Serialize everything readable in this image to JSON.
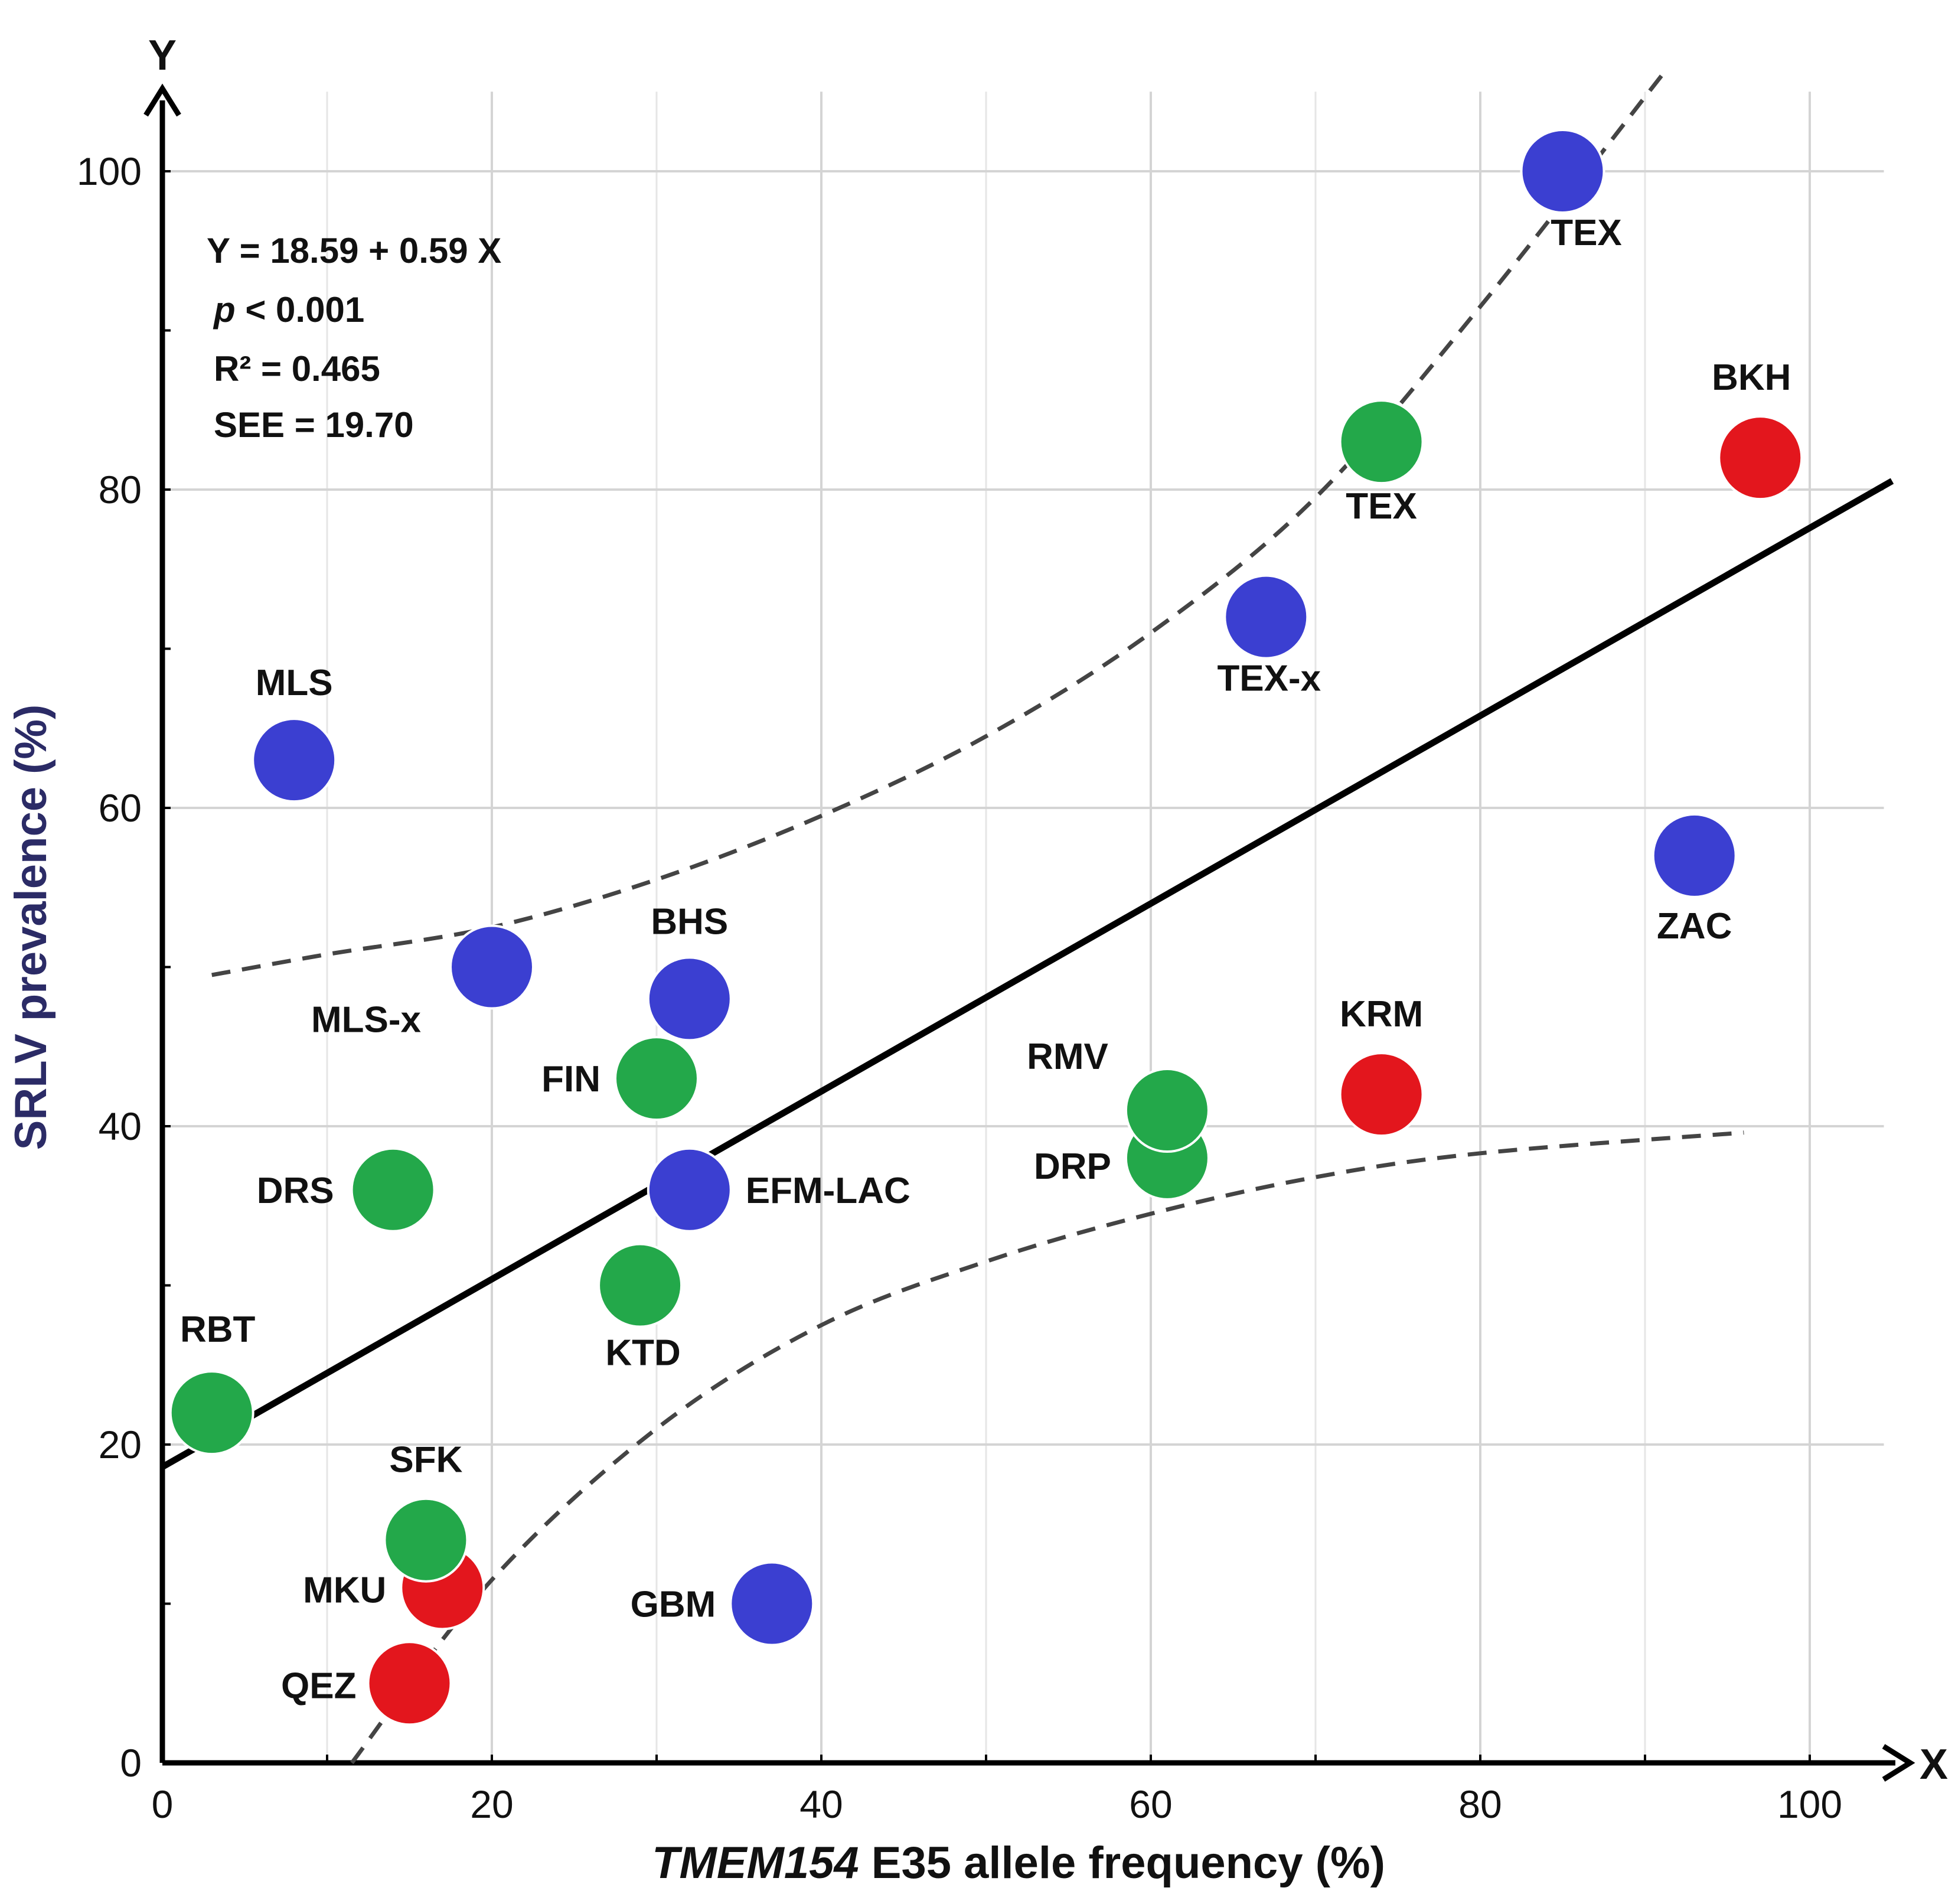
{
  "chart_data": {
    "type": "scatter",
    "xlabel_italic": "TMEM154",
    "xlabel_rest": " E35 allele frequency (%)",
    "ylabel": "SRLV prevalence (%)",
    "x_axis_letter": "X",
    "y_axis_letter": "Y",
    "xlim": [
      0,
      105
    ],
    "ylim": [
      0,
      105
    ],
    "x_ticks": [
      0,
      20,
      40,
      60,
      80,
      100
    ],
    "y_ticks": [
      0,
      20,
      40,
      60,
      80,
      100
    ],
    "grid": true,
    "equation": {
      "line1": "Y = 18.59 + 0.59 X",
      "line2_italic": "p",
      "line2_rest": " < 0.001",
      "line3": "R² = 0.465",
      "line4": "SEE = 19.70"
    },
    "regression": {
      "intercept": 18.59,
      "slope": 0.59
    },
    "confidence_band": {
      "upper": [
        [
          3,
          49.5
        ],
        [
          10,
          50.8
        ],
        [
          20,
          52.5
        ],
        [
          30,
          55.5
        ],
        [
          40,
          59.5
        ],
        [
          50,
          64.5
        ],
        [
          60,
          71
        ],
        [
          70,
          79.5
        ],
        [
          80,
          91.5
        ],
        [
          91,
          106
        ]
      ],
      "lower": [
        [
          11.5,
          0
        ],
        [
          20,
          11.5
        ],
        [
          30,
          21
        ],
        [
          40,
          27.5
        ],
        [
          50,
          31.5
        ],
        [
          60,
          34.5
        ],
        [
          70,
          36.8
        ],
        [
          80,
          38.3
        ],
        [
          96,
          39.6
        ]
      ]
    },
    "colors": {
      "blue": "#3b3fd1",
      "green": "#23a84a",
      "red": "#e3161d"
    },
    "points": [
      {
        "label": "TEX",
        "x": 85,
        "y": 100,
        "color": "blue"
      },
      {
        "label": "BKH",
        "x": 97,
        "y": 82,
        "color": "red"
      },
      {
        "label": "TEX",
        "x": 74,
        "y": 83,
        "color": "green"
      },
      {
        "label": "TEX-x",
        "x": 67,
        "y": 72,
        "color": "blue"
      },
      {
        "label": "MLS",
        "x": 8,
        "y": 63,
        "color": "blue"
      },
      {
        "label": "ZAC",
        "x": 93,
        "y": 57,
        "color": "blue"
      },
      {
        "label": "MLS-x",
        "x": 20,
        "y": 50,
        "color": "blue"
      },
      {
        "label": "BHS",
        "x": 32,
        "y": 48,
        "color": "blue"
      },
      {
        "label": "FIN",
        "x": 30,
        "y": 43,
        "color": "green"
      },
      {
        "label": "KRM",
        "x": 74,
        "y": 42,
        "color": "red"
      },
      {
        "label": "DRP",
        "x": 61,
        "y": 38,
        "color": "green"
      },
      {
        "label": "RMV",
        "x": 61,
        "y": 41,
        "color": "green"
      },
      {
        "label": "DRS",
        "x": 14,
        "y": 36,
        "color": "green"
      },
      {
        "label": "EFM-LAC",
        "x": 32,
        "y": 36,
        "color": "blue"
      },
      {
        "label": "KTD",
        "x": 29,
        "y": 30,
        "color": "green"
      },
      {
        "label": "RBT",
        "x": 3,
        "y": 22,
        "color": "green"
      },
      {
        "label": "MKU",
        "x": 17,
        "y": 11,
        "color": "red"
      },
      {
        "label": "SFK",
        "x": 16,
        "y": 14,
        "color": "green"
      },
      {
        "label": "GBM",
        "x": 37,
        "y": 10,
        "color": "blue"
      },
      {
        "label": "QEZ",
        "x": 15,
        "y": 5,
        "color": "red"
      }
    ]
  }
}
